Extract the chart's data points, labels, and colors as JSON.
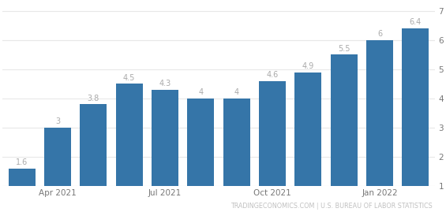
{
  "values": [
    1.6,
    3.0,
    3.8,
    4.5,
    4.3,
    4.0,
    4.0,
    4.6,
    4.9,
    5.5,
    6.0,
    6.4
  ],
  "labels": [
    "1.6",
    "3",
    "3.8",
    "4.5",
    "4.3",
    "4",
    "4",
    "4.6",
    "4.9",
    "5.5",
    "6",
    "6.4"
  ],
  "x_tick_positions": [
    1,
    4,
    7,
    10
  ],
  "x_tick_labels": [
    "Apr 2021",
    "Jul 2021",
    "Oct 2021",
    "Jan 2022"
  ],
  "y_ticks": [
    1,
    2,
    3,
    4,
    5,
    6,
    7
  ],
  "ylim": [
    1.0,
    7.3
  ],
  "bar_bottom": 1.0,
  "bar_color": "#3575a8",
  "label_color": "#aaaaaa",
  "background_color": "#ffffff",
  "grid_color": "#e8e8e8",
  "footer_text": "TRADINGECONOMICS.COM | U.S. BUREAU OF LABOR STATISTICS",
  "footer_color": "#c0c0c0",
  "label_fontsize": 7.0,
  "tick_fontsize": 7.5,
  "footer_fontsize": 5.8
}
